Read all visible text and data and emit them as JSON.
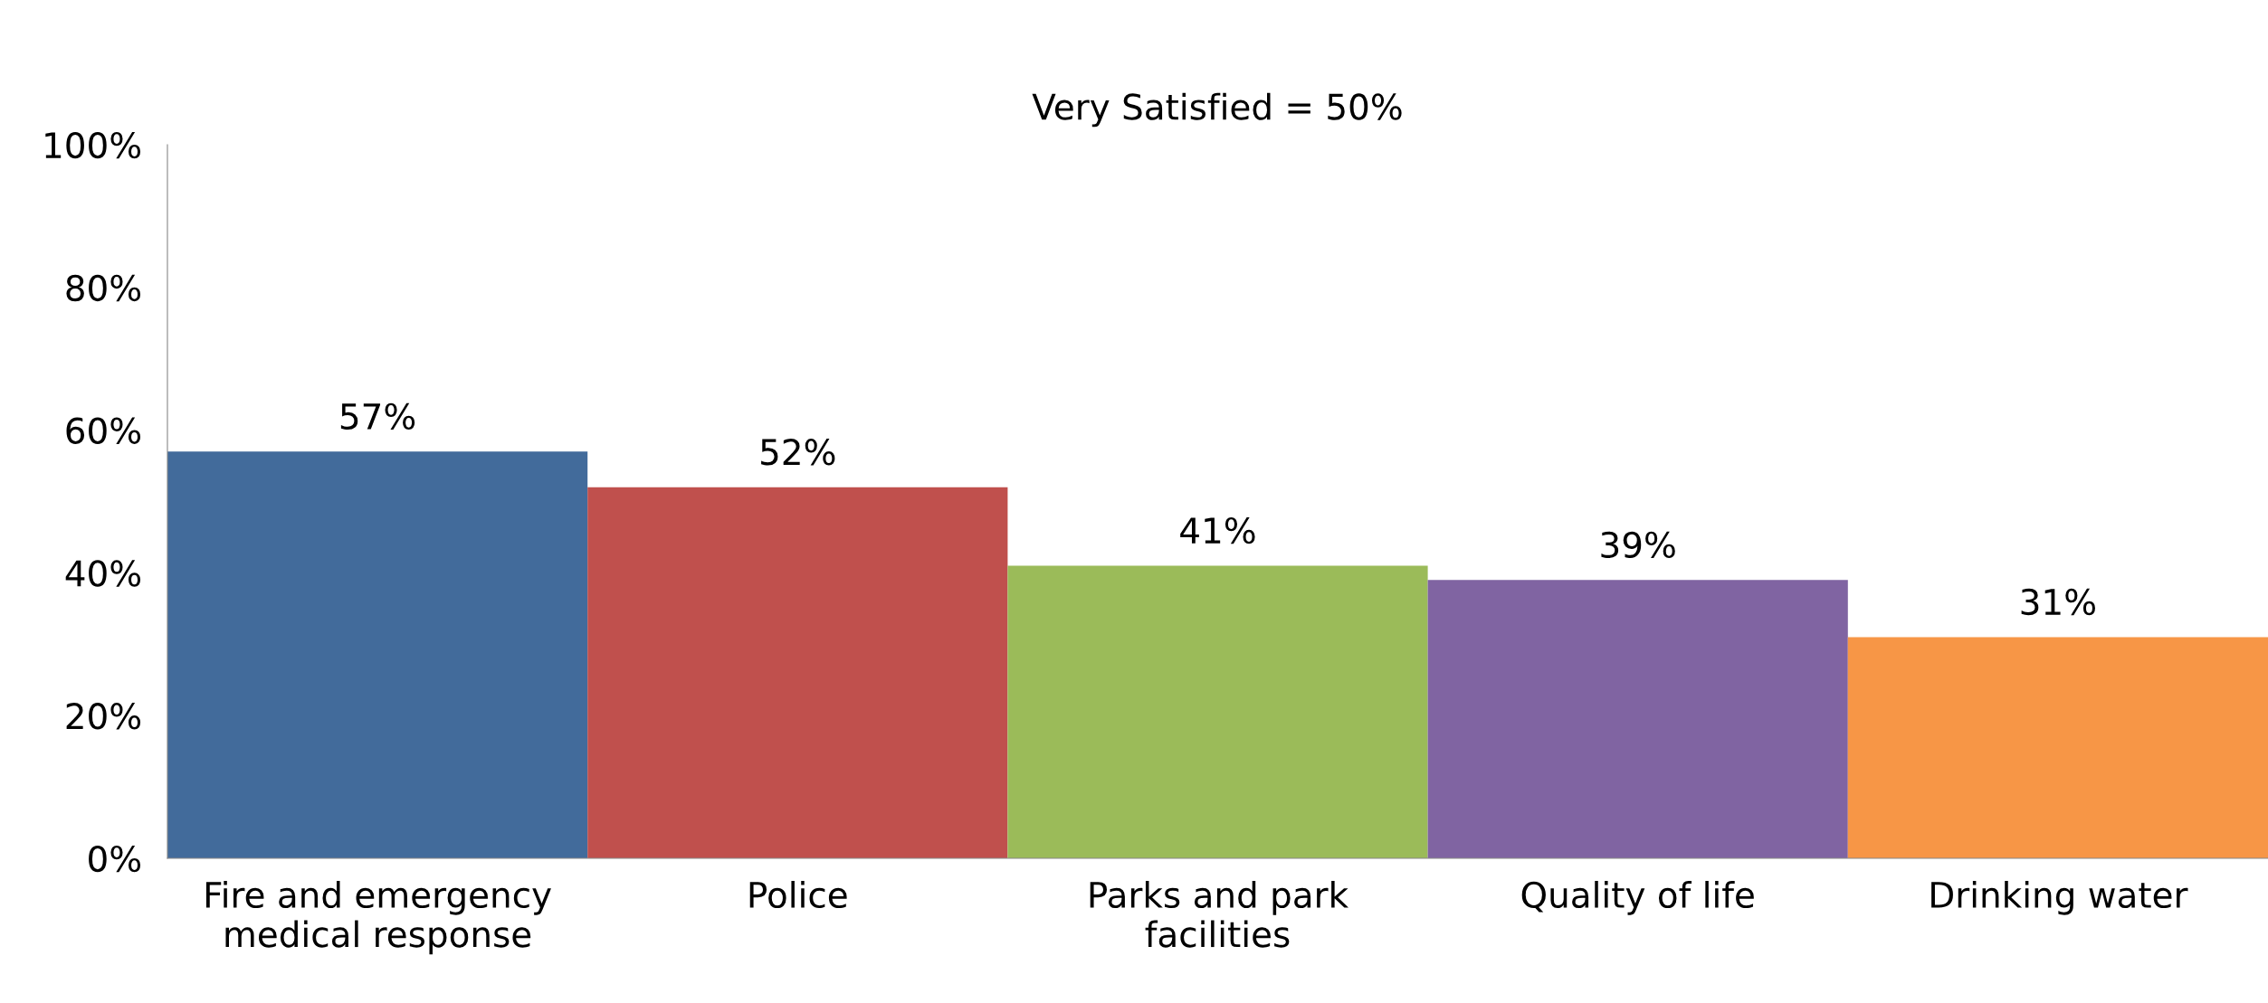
{
  "chart_data": {
    "type": "bar",
    "title": "Very Satisfied = 50%",
    "categories": [
      "Fire and emergency\nmedical response",
      "Police",
      "Parks and park\nfacilities",
      "Quality of life",
      "Drinking water"
    ],
    "values": [
      57,
      52,
      41,
      39,
      31
    ],
    "colors": [
      "#426b9b",
      "#c0504d",
      "#9bbb59",
      "#8064a2",
      "#f79646"
    ],
    "value_labels": [
      "57%",
      "52%",
      "41%",
      "39%",
      "31%"
    ],
    "ylim": [
      0,
      100
    ],
    "yticks": [
      {
        "value": 0,
        "label": "0%"
      },
      {
        "value": 20,
        "label": "20%"
      },
      {
        "value": 40,
        "label": "40%"
      },
      {
        "value": 60,
        "label": "60%"
      },
      {
        "value": 80,
        "label": "80%"
      },
      {
        "value": 100,
        "label": "100%"
      }
    ],
    "grid": false,
    "legend": false
  }
}
